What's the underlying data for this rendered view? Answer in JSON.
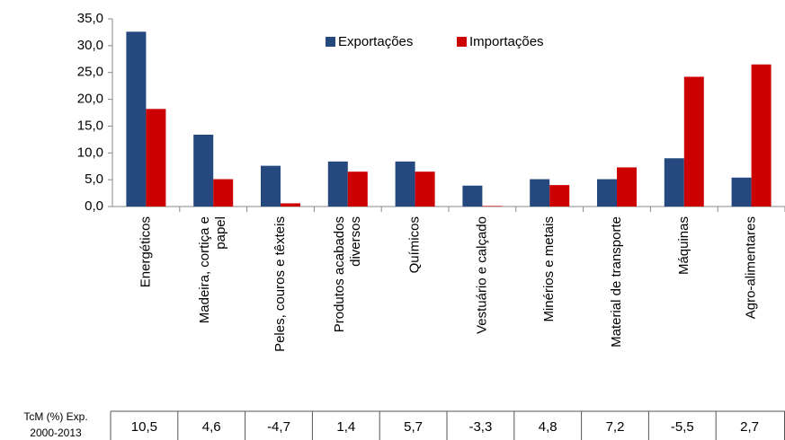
{
  "chart_data": {
    "type": "bar",
    "categories": [
      [
        "Energéticos"
      ],
      [
        "Madeira, cortiça e",
        "papel"
      ],
      [
        "Peles, couros e têxteis"
      ],
      [
        "Produtos acabados",
        "diversos"
      ],
      [
        "Químicos"
      ],
      [
        "Vestuário e calçado"
      ],
      [
        "Minérios e metais"
      ],
      [
        "Material de transporte"
      ],
      [
        "Máquinas"
      ],
      [
        "Agro-alimentares"
      ]
    ],
    "series": [
      {
        "name": "Exportações",
        "color": "#25497f",
        "values": [
          32.6,
          13.4,
          7.6,
          8.4,
          8.4,
          3.9,
          5.1,
          5.1,
          9.0,
          5.4
        ]
      },
      {
        "name": "Importações",
        "color": "#cc0000",
        "values": [
          18.2,
          5.1,
          0.6,
          6.5,
          6.5,
          0.1,
          4.0,
          7.3,
          24.2,
          26.5
        ]
      }
    ],
    "ylim": [
      0,
      35
    ],
    "yticks": [
      {
        "value": 0,
        "label": "0,0"
      },
      {
        "value": 5,
        "label": "5,0"
      },
      {
        "value": 10,
        "label": "10,0"
      },
      {
        "value": 15,
        "label": "15,0"
      },
      {
        "value": 20,
        "label": "20,0"
      },
      {
        "value": 25,
        "label": "25,0"
      },
      {
        "value": 30,
        "label": "30,0"
      },
      {
        "value": 35,
        "label": "35,0"
      }
    ],
    "grid": false,
    "legend": "top"
  },
  "table": {
    "label": [
      "TcM (%) Exp.",
      "2000-2013"
    ],
    "cells": [
      "10,5",
      "4,6",
      "-4,7",
      "1,4",
      "5,7",
      "-3,3",
      "4,8",
      "7,2",
      "-5,5",
      "2,7"
    ]
  }
}
